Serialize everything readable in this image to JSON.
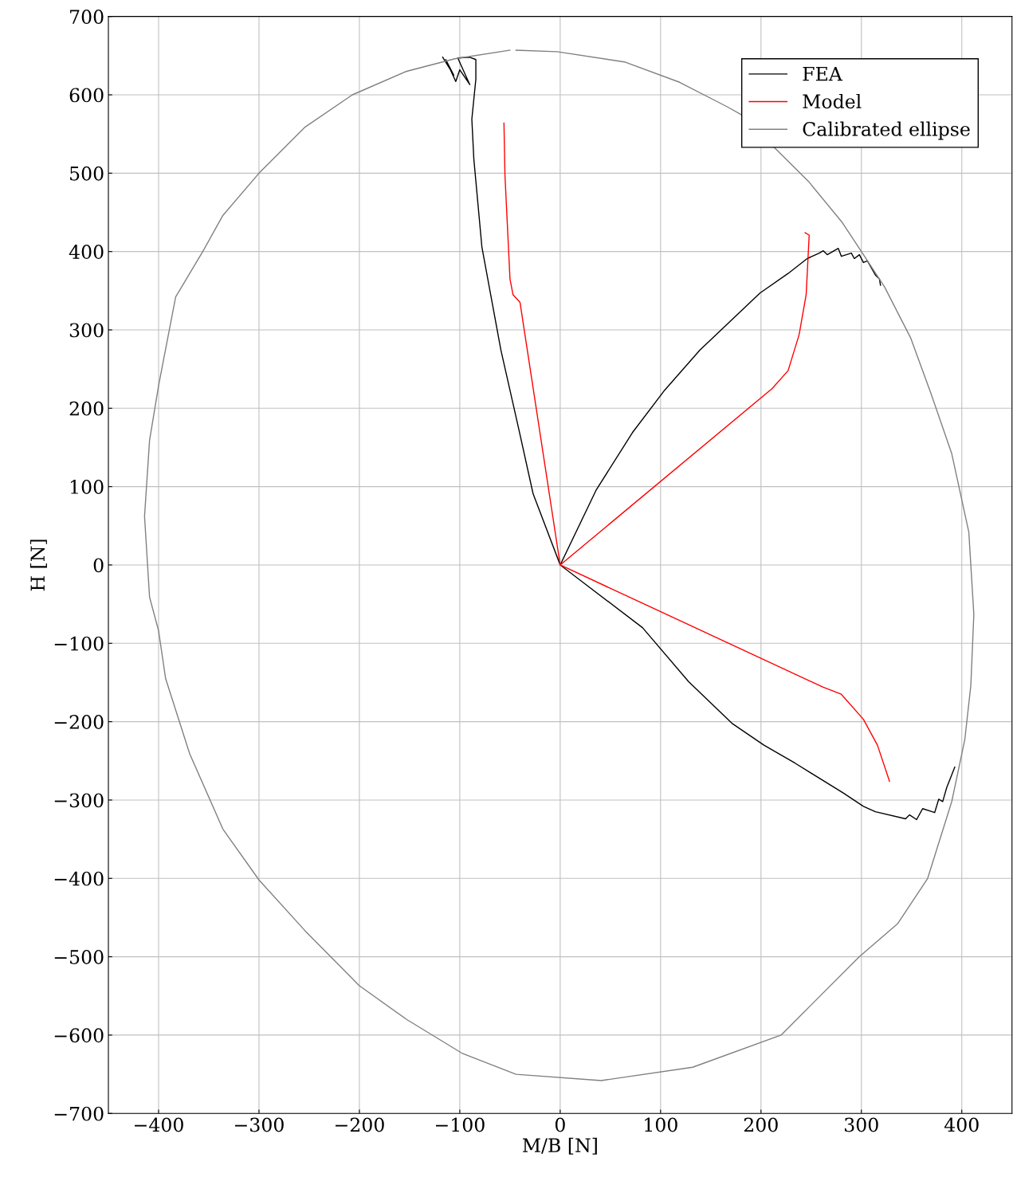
{
  "chart_data": {
    "type": "line",
    "xlabel": "M/B [N]",
    "ylabel": "H [N]",
    "xlim": [
      -450,
      450
    ],
    "ylim": [
      -700,
      700
    ],
    "xticks": [
      {
        "value": -400,
        "label": "−400"
      },
      {
        "value": -300,
        "label": "−300"
      },
      {
        "value": -200,
        "label": "−200"
      },
      {
        "value": -100,
        "label": "−100"
      },
      0,
      100,
      200,
      300,
      400
    ],
    "yticks": [
      {
        "value": -700,
        "label": "−700"
      },
      {
        "value": -600,
        "label": "−600"
      },
      {
        "value": -500,
        "label": "−500"
      },
      {
        "value": -400,
        "label": "−400"
      },
      {
        "value": -300,
        "label": "−300"
      },
      {
        "value": -200,
        "label": "−200"
      },
      {
        "value": -100,
        "label": "−100"
      },
      0,
      100,
      200,
      300,
      400,
      500,
      600,
      700
    ],
    "grid": true,
    "legend": "top right",
    "marker": "none",
    "line_style": "solid",
    "series": [
      {
        "name": "FEA",
        "color": "#000000",
        "x": [
          0,
          -27,
          -41,
          -59,
          -78,
          -86,
          -88,
          -84,
          -84,
          -84,
          -90,
          -102,
          -90,
          -100,
          -104,
          -114,
          -106,
          -117,
          null,
          0,
          36,
          72,
          104,
          139,
          199,
          227,
          246,
          258,
          262,
          266,
          277,
          280,
          290,
          293,
          298,
          302,
          306,
          314,
          318,
          319,
          null,
          0,
          82,
          128,
          171,
          203,
          234,
          282,
          302,
          314,
          344,
          348,
          355,
          361,
          373,
          377,
          381,
          385,
          389,
          393
        ],
        "values": [
          0,
          91,
          172,
          274,
          406,
          518,
          569,
          620,
          632,
          645,
          648,
          647,
          613,
          632,
          617,
          645,
          625,
          648,
          null,
          0,
          96,
          169,
          223,
          274,
          347,
          372,
          391,
          398,
          401,
          396,
          404,
          394,
          398,
          391,
          396,
          386,
          388,
          370,
          365,
          357,
          null,
          0,
          -80,
          -149,
          -202,
          -230,
          -253,
          -291,
          -308,
          -315,
          -324,
          -319,
          -325,
          -311,
          -316,
          -299,
          -302,
          -284,
          -271,
          -258
        ]
      },
      {
        "name": "Model",
        "color": "#ff0000",
        "x": [
          0,
          -40,
          -47,
          -50,
          -55,
          -56,
          null,
          0,
          211,
          227,
          238,
          245,
          248,
          244,
          null,
          0,
          262,
          280,
          302,
          316,
          328
        ],
        "values": [
          0,
          335,
          345,
          365,
          497,
          564,
          null,
          0,
          225,
          248,
          294,
          345,
          421,
          424,
          null,
          0,
          -156,
          -165,
          -197,
          -230,
          -276
        ]
      },
      {
        "name": "Calibrated ellipse",
        "color": "#808080",
        "x": [
          -44,
          -3,
          64,
          119,
          166,
          180,
          247,
          281,
          300,
          323,
          349,
          369,
          390,
          407,
          412,
          409,
          403,
          390,
          366,
          336,
          298,
          220,
          132,
          41,
          -44,
          -98,
          -153,
          -200,
          -254,
          -300,
          -336,
          -369,
          -393,
          -400,
          -409,
          -414,
          -409,
          -400,
          -383,
          -356,
          -336,
          -300,
          -254,
          -207,
          -153,
          -105,
          -50
        ],
        "values": [
          657,
          655,
          642,
          616,
          585,
          575,
          490,
          437,
          400,
          355,
          290,
          220,
          142,
          42,
          -63,
          -154,
          -223,
          -302,
          -400,
          -458,
          -500,
          -600,
          -641,
          -658,
          -650,
          -623,
          -580,
          -537,
          -467,
          -402,
          -337,
          -241,
          -145,
          -84,
          -41,
          62,
          159,
          229,
          342,
          400,
          446,
          500,
          559,
          600,
          630,
          646,
          657
        ]
      }
    ]
  }
}
